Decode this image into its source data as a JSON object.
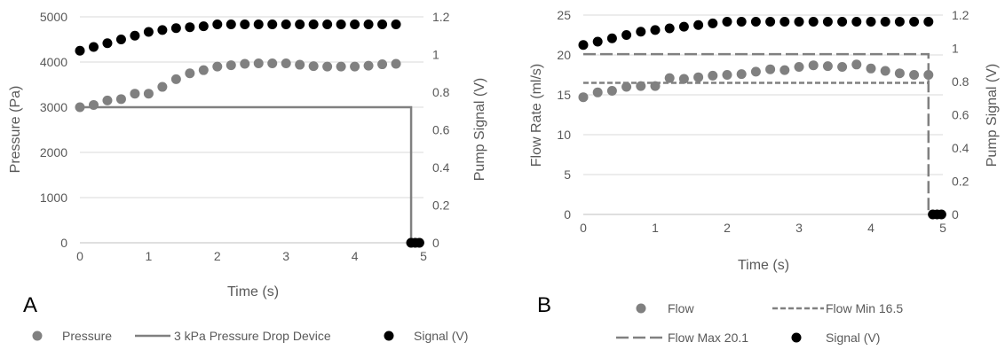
{
  "panels": [
    {
      "letter": "A"
    },
    {
      "letter": "B"
    }
  ],
  "chart_data": [
    {
      "type": "scatter",
      "xlabel": "Time (s)",
      "ylabel": "Pressure (Pa)",
      "y2label": "Pump Signal (V)",
      "xlim": [
        0,
        5
      ],
      "ylim": [
        0,
        5000
      ],
      "y2lim": [
        0,
        1.2
      ],
      "xticks": [
        "0",
        "1",
        "2",
        "3",
        "4",
        "5"
      ],
      "yticks": [
        "0",
        "1000",
        "2000",
        "3000",
        "4000",
        "5000"
      ],
      "y2ticks": [
        "0",
        "0.2",
        "0.4",
        "0.6",
        "0.8",
        "1",
        "1.2"
      ],
      "grid": "horizontal",
      "legend_position": "bottom",
      "series": [
        {
          "name": "Pressure",
          "kind": "scatter",
          "axis": "left",
          "color": "#808080",
          "x": [
            0,
            0.2,
            0.4,
            0.6,
            0.8,
            1.0,
            1.2,
            1.4,
            1.6,
            1.8,
            2.0,
            2.2,
            2.4,
            2.6,
            2.8,
            3.0,
            3.2,
            3.4,
            3.6,
            3.8,
            4.0,
            4.2,
            4.4,
            4.6,
            4.82,
            4.88,
            4.94
          ],
          "y": [
            3000,
            3050,
            3150,
            3180,
            3300,
            3300,
            3450,
            3620,
            3750,
            3820,
            3900,
            3930,
            3960,
            3970,
            3970,
            3970,
            3940,
            3910,
            3900,
            3900,
            3900,
            3920,
            3950,
            3960,
            0,
            0,
            0
          ]
        },
        {
          "name": "3 kPa Pressure Drop Device",
          "kind": "line",
          "axis": "left",
          "color": "#808080",
          "x": [
            0,
            4.82,
            4.82
          ],
          "y": [
            3000,
            3000,
            0
          ]
        },
        {
          "name": "Signal (V)",
          "kind": "scatter",
          "axis": "right",
          "color": "#000000",
          "x": [
            0,
            0.2,
            0.4,
            0.6,
            0.8,
            1.0,
            1.2,
            1.4,
            1.6,
            1.8,
            2.0,
            2.2,
            2.4,
            2.6,
            2.8,
            3.0,
            3.2,
            3.4,
            3.6,
            3.8,
            4.0,
            4.2,
            4.4,
            4.6,
            4.82,
            4.88,
            4.94
          ],
          "y": [
            1.02,
            1.04,
            1.06,
            1.08,
            1.1,
            1.12,
            1.13,
            1.14,
            1.145,
            1.15,
            1.16,
            1.16,
            1.16,
            1.16,
            1.16,
            1.16,
            1.16,
            1.16,
            1.16,
            1.16,
            1.16,
            1.16,
            1.16,
            1.16,
            0,
            0,
            0
          ]
        }
      ]
    },
    {
      "type": "scatter",
      "xlabel": "Time (s)",
      "ylabel": "Flow Rate (ml/s)",
      "y2label": "Pump Signal (V)",
      "xlim": [
        0,
        5
      ],
      "ylim": [
        0,
        25
      ],
      "y2lim": [
        0,
        1.2
      ],
      "xticks": [
        "0",
        "1",
        "2",
        "3",
        "4",
        "5"
      ],
      "yticks": [
        "0",
        "5",
        "10",
        "15",
        "20",
        "25"
      ],
      "y2ticks": [
        "0",
        "0.2",
        "0.4",
        "0.6",
        "0.8",
        "1",
        "1.2"
      ],
      "grid": "horizontal",
      "legend_position": "bottom",
      "series": [
        {
          "name": "Flow",
          "kind": "scatter",
          "axis": "left",
          "color": "#808080",
          "x": [
            0,
            0.2,
            0.4,
            0.6,
            0.8,
            1.0,
            1.2,
            1.4,
            1.6,
            1.8,
            2.0,
            2.2,
            2.4,
            2.6,
            2.8,
            3.0,
            3.2,
            3.4,
            3.6,
            3.8,
            4.0,
            4.2,
            4.4,
            4.6,
            4.8
          ],
          "y": [
            14.7,
            15.3,
            15.5,
            16.0,
            16.1,
            16.1,
            17.1,
            17.0,
            17.2,
            17.4,
            17.5,
            17.6,
            17.9,
            18.2,
            18.1,
            18.5,
            18.7,
            18.6,
            18.5,
            18.8,
            18.3,
            18.0,
            17.7,
            17.5,
            17.5
          ]
        },
        {
          "name": "Flow Min 16.5",
          "kind": "short-dash",
          "axis": "left",
          "color": "#808080",
          "x": [
            0,
            4.8
          ],
          "y": [
            16.5,
            16.5
          ]
        },
        {
          "name": "Flow Max 20.1",
          "kind": "long-dash",
          "axis": "left",
          "color": "#808080",
          "x": [
            0,
            4.8,
            4.8
          ],
          "y": [
            20.1,
            20.1,
            0
          ]
        },
        {
          "name": "Signal (V)",
          "kind": "scatter",
          "axis": "right",
          "color": "#000000",
          "x": [
            0,
            0.2,
            0.4,
            0.6,
            0.8,
            1.0,
            1.2,
            1.4,
            1.6,
            1.8,
            2.0,
            2.2,
            2.4,
            2.6,
            2.8,
            3.0,
            3.2,
            3.4,
            3.6,
            3.8,
            4.0,
            4.2,
            4.4,
            4.6,
            4.8,
            4.86,
            4.92,
            4.98
          ],
          "y": [
            1.02,
            1.04,
            1.06,
            1.08,
            1.1,
            1.11,
            1.12,
            1.13,
            1.14,
            1.15,
            1.16,
            1.16,
            1.16,
            1.16,
            1.16,
            1.16,
            1.16,
            1.16,
            1.16,
            1.16,
            1.16,
            1.16,
            1.16,
            1.16,
            1.16,
            0,
            0,
            0
          ]
        }
      ]
    }
  ]
}
